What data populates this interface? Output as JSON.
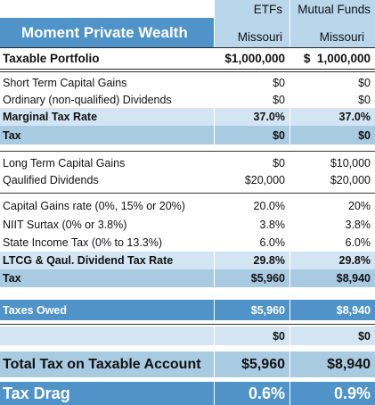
{
  "header": {
    "title": "Moment Private Wealth",
    "columns": [
      "ETFs",
      "Mutual Funds"
    ],
    "states": [
      "Missouri",
      "Missouri"
    ]
  },
  "rows": [
    {
      "label": "Taxable Portfolio",
      "values": [
        "$1,000,000",
        "$  1,000,000"
      ]
    },
    {
      "label": "Short Term Capital Gains",
      "values": [
        "$0",
        "$0"
      ]
    },
    {
      "label": "Ordinary (non-qualified) Dividends",
      "values": [
        "$0",
        "$0"
      ]
    },
    {
      "label": "Marginal Tax Rate",
      "values": [
        "37.0%",
        "37.0%"
      ]
    },
    {
      "label": "Tax",
      "values": [
        "$0",
        "$0"
      ]
    },
    {
      "label": "Long Term Capital Gains",
      "values": [
        "$0",
        "$10,000"
      ]
    },
    {
      "label": "Qaulified Dividends",
      "values": [
        "$20,000",
        "$20,000"
      ]
    },
    {
      "label": "Capital Gains rate (0%, 15% or 20%)",
      "values": [
        "20.0%",
        "20%"
      ]
    },
    {
      "label": "NIIT Surtax (0% or 3.8%)",
      "values": [
        "3.8%",
        "3.8%"
      ]
    },
    {
      "label": "State Income Tax (0% to 13.3%)",
      "values": [
        "6.0%",
        "6.0%"
      ]
    },
    {
      "label": "LTCG & Qaul. Dividend Tax Rate",
      "values": [
        "29.8%",
        "29.8%"
      ]
    },
    {
      "label": "Tax",
      "values": [
        "$5,960",
        "$8,940"
      ]
    },
    {
      "label": "Taxes Owed",
      "values": [
        "$5,960",
        "$8,940"
      ]
    },
    {
      "values": [
        "$0",
        "$0"
      ]
    },
    {
      "label": "Total Tax on Taxable Account",
      "values": [
        "$5,960",
        "$8,940"
      ]
    },
    {
      "label": "Tax Drag",
      "values": [
        "0.6%",
        "0.9%"
      ]
    }
  ]
}
